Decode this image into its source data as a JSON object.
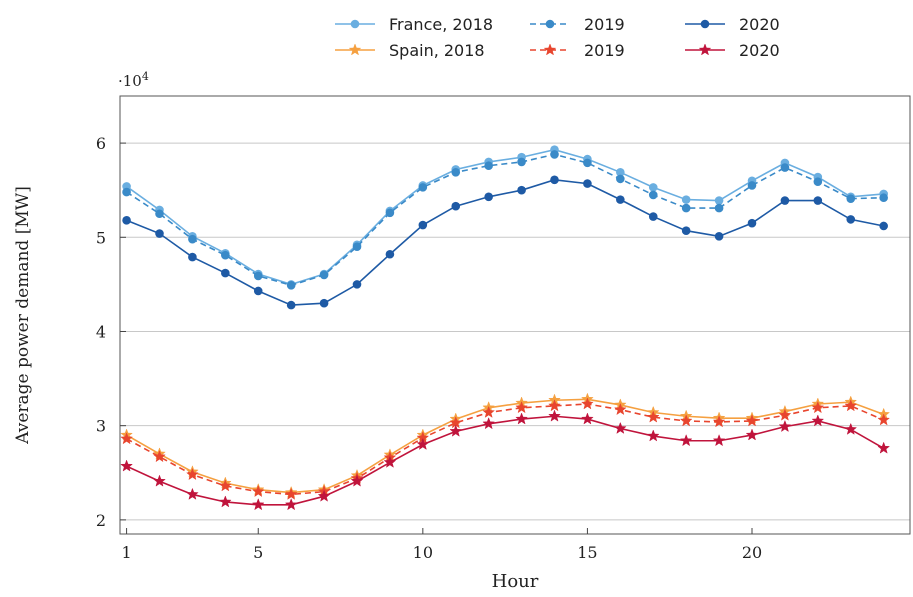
{
  "chart_data": {
    "type": "line",
    "xlabel": "Hour",
    "ylabel": "Average power demand [MW]",
    "y_multiplier": "·10",
    "y_multiplier_exp": "4",
    "xlim": [
      0.8,
      24.8
    ],
    "ylim": [
      18500,
      65000
    ],
    "xticks": [
      1,
      5,
      10,
      15,
      20
    ],
    "yticks": [
      20000,
      30000,
      40000,
      50000,
      60000
    ],
    "ytick_labels": [
      "2",
      "3",
      "4",
      "5",
      "6"
    ],
    "grid": "horizontal",
    "legend_position": "top",
    "x": [
      1,
      2,
      3,
      4,
      5,
      6,
      7,
      8,
      9,
      10,
      11,
      12,
      13,
      14,
      15,
      16,
      17,
      18,
      19,
      20,
      21,
      22,
      23,
      24
    ],
    "series": [
      {
        "name": "France, 2018",
        "color": "#6aaee0",
        "marker": "circle",
        "dash": "solid",
        "values": [
          55400,
          52900,
          50100,
          48300,
          46100,
          45000,
          46100,
          49200,
          52800,
          55500,
          57200,
          58000,
          58500,
          59300,
          58300,
          56900,
          55300,
          54000,
          53900,
          56000,
          57900,
          56400,
          54300,
          54600
        ]
      },
      {
        "name": "2019",
        "color": "#3a8ac8",
        "marker": "circle",
        "dash": "dashed",
        "values": [
          54800,
          52500,
          49800,
          48100,
          45900,
          44900,
          46000,
          49000,
          52600,
          55300,
          56900,
          57600,
          58000,
          58800,
          57900,
          56200,
          54500,
          53100,
          53100,
          55500,
          57400,
          55900,
          54100,
          54200
        ]
      },
      {
        "name": "2020",
        "color": "#1e5aa5",
        "marker": "circle",
        "dash": "solid",
        "values": [
          51800,
          50400,
          47900,
          46200,
          44300,
          42800,
          43000,
          45000,
          48200,
          51300,
          53300,
          54300,
          55000,
          56100,
          55700,
          54000,
          52200,
          50700,
          50100,
          51500,
          53900,
          53900,
          51900,
          51200
        ]
      },
      {
        "name": "Spain, 2018",
        "color": "#f5a040",
        "marker": "star",
        "dash": "solid",
        "values": [
          29000,
          27000,
          25100,
          23900,
          23200,
          22900,
          23200,
          24700,
          26900,
          29000,
          30700,
          31900,
          32400,
          32700,
          32800,
          32200,
          31400,
          31000,
          30800,
          30800,
          31500,
          32300,
          32500,
          31200
        ]
      },
      {
        "name": "2019",
        "color": "#e8452e",
        "marker": "star",
        "dash": "dashed",
        "values": [
          28600,
          26700,
          24800,
          23600,
          23000,
          22700,
          23000,
          24400,
          26600,
          28700,
          30300,
          31400,
          31900,
          32100,
          32300,
          31700,
          30900,
          30500,
          30400,
          30500,
          31100,
          31900,
          32100,
          30600
        ]
      },
      {
        "name": "2020",
        "color": "#c0143c",
        "marker": "star",
        "dash": "solid",
        "values": [
          25700,
          24100,
          22700,
          21900,
          21600,
          21600,
          22500,
          24100,
          26100,
          28000,
          29400,
          30200,
          30700,
          31000,
          30700,
          29700,
          28900,
          28400,
          28400,
          29000,
          29900,
          30500,
          29600,
          27600
        ]
      }
    ]
  }
}
